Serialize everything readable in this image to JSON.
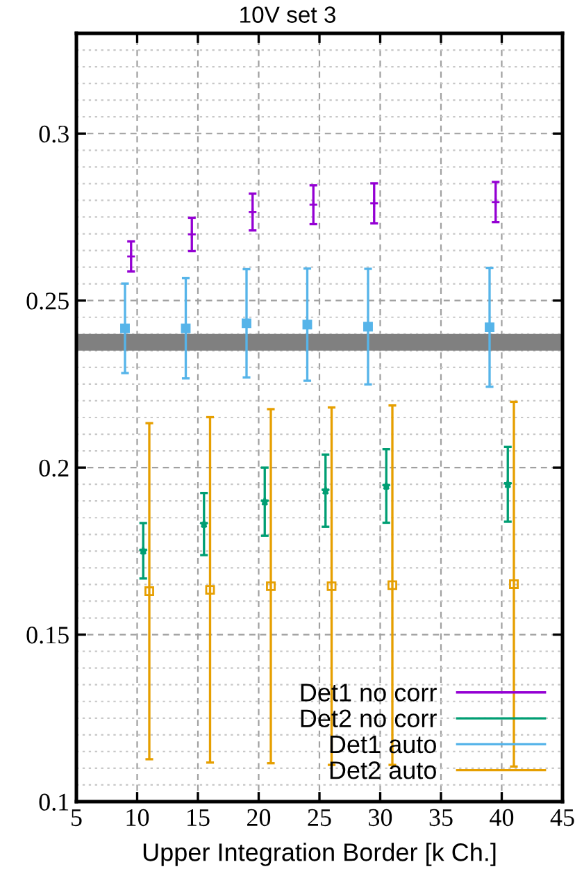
{
  "chart_data": {
    "type": "scatter",
    "title": "10V set 3",
    "xlabel": "Upper Integration Border [k Ch.]",
    "xlim": [
      5,
      45
    ],
    "xticks": [
      5,
      10,
      15,
      20,
      25,
      30,
      35,
      40,
      45
    ],
    "ylim": [
      0.1,
      0.33
    ],
    "yticks": [
      0.1,
      0.15,
      0.2,
      0.25,
      0.3
    ],
    "grid": true,
    "legend": "bottom right",
    "bands": [
      {
        "axis": "y",
        "from": 0.235,
        "to": 0.24,
        "color": "#808080"
      }
    ],
    "series": [
      {
        "name": "Det1 no corr",
        "color": "#9400d3",
        "marker": "cross",
        "x": [
          9.5,
          14.5,
          19.5,
          24.5,
          29.5,
          39.5
        ],
        "values": [
          0.2632,
          0.2698,
          0.2765,
          0.2787,
          0.2791,
          0.2795
        ],
        "errors": [
          0.0045,
          0.005,
          0.0055,
          0.0058,
          0.006,
          0.006
        ]
      },
      {
        "name": "Det2 no corr",
        "color": "#009e73",
        "marker": "star",
        "x": [
          10.5,
          15.5,
          20.5,
          25.5,
          30.5,
          40.5
        ],
        "values": [
          0.1751,
          0.1831,
          0.1898,
          0.1931,
          0.1945,
          0.195
        ],
        "errors": [
          0.0083,
          0.0093,
          0.0102,
          0.0108,
          0.011,
          0.0112
        ]
      },
      {
        "name": "Det1 auto",
        "color": "#56b4e9",
        "marker": "square",
        "x": [
          9,
          14,
          19,
          24,
          29,
          39
        ],
        "values": [
          0.2417,
          0.2417,
          0.2432,
          0.2428,
          0.2422,
          0.242
        ],
        "errors": [
          0.0134,
          0.015,
          0.0162,
          0.0168,
          0.0173,
          0.0178
        ]
      },
      {
        "name": "Det2 auto",
        "color": "#e69f00",
        "marker": "square",
        "x": [
          11,
          16,
          21,
          26,
          31,
          41
        ],
        "values": [
          0.163,
          0.1634,
          0.1645,
          0.1645,
          0.1648,
          0.1651
        ],
        "errors": [
          0.0503,
          0.0517,
          0.053,
          0.0535,
          0.0538,
          0.0546
        ]
      }
    ]
  }
}
